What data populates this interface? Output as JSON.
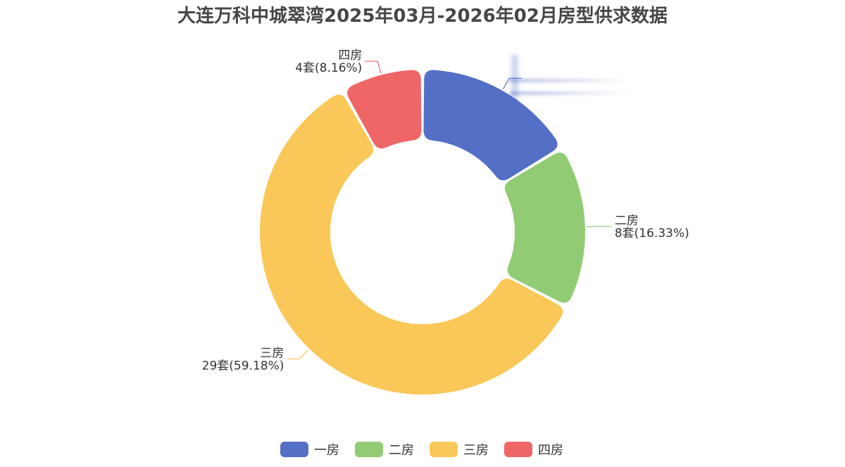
{
  "chart_data": {
    "type": "pie",
    "title": "大连万科中城翠湾2025年03月-2026年02月房型供求数据",
    "unit": "套",
    "slices": [
      {
        "name": "一房",
        "value": 8,
        "percent": "16.33%",
        "color": "#5470c6",
        "label_visible": false
      },
      {
        "name": "二房",
        "value": 8,
        "percent": "16.33%",
        "color": "#91cc75",
        "label_visible": true
      },
      {
        "name": "三房",
        "value": 29,
        "percent": "59.18%",
        "color": "#fac858",
        "label_visible": true
      },
      {
        "name": "四房",
        "value": 4,
        "percent": "8.16%",
        "color": "#ee6666",
        "label_visible": true
      }
    ],
    "legend": {
      "position": "bottom-center",
      "items": [
        "一房",
        "二房",
        "三房",
        "四房"
      ]
    }
  }
}
